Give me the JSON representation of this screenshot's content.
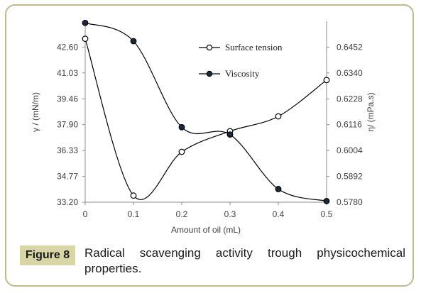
{
  "figure": {
    "label": "Figure 8",
    "caption": "Radical scavenging activity trough physicochemical properties."
  },
  "chart_data": {
    "type": "line",
    "xlabel": "Amount of oil (mL)",
    "ylabel_left": "γ / (mN/m)",
    "ylabel_right": "η/ (mPa.s)",
    "x_ticks": [
      "0",
      "0.1",
      "0.2",
      "0.3",
      "0.4",
      "0.5"
    ],
    "y_left_ticks": [
      "33.20",
      "34.77",
      "36.33",
      "37.90",
      "39.46",
      "41.03",
      "42.60"
    ],
    "y_right_ticks": [
      "0.5780",
      "0.5892",
      "0.6004",
      "0.6116",
      "0.6228",
      "0.6340",
      "0.6452"
    ],
    "xlim": [
      0,
      0.5
    ],
    "ylim_left": [
      33.2,
      44.16
    ],
    "ylim_right": [
      0.578,
      0.6564
    ],
    "legend_position": "top-right",
    "series": [
      {
        "name": "Surface tension",
        "axis": "left",
        "marker": "open-circle",
        "x": [
          0,
          0.1,
          0.2,
          0.3,
          0.4,
          0.5
        ],
        "values": [
          43.1,
          33.6,
          36.25,
          37.5,
          38.4,
          40.6
        ]
      },
      {
        "name": "Viscosity",
        "axis": "right",
        "marker": "filled-circle",
        "x": [
          0,
          0.1,
          0.2,
          0.3,
          0.4,
          0.5
        ],
        "values": [
          0.6557,
          0.6478,
          0.6105,
          0.6073,
          0.5837,
          0.5785
        ]
      }
    ]
  }
}
